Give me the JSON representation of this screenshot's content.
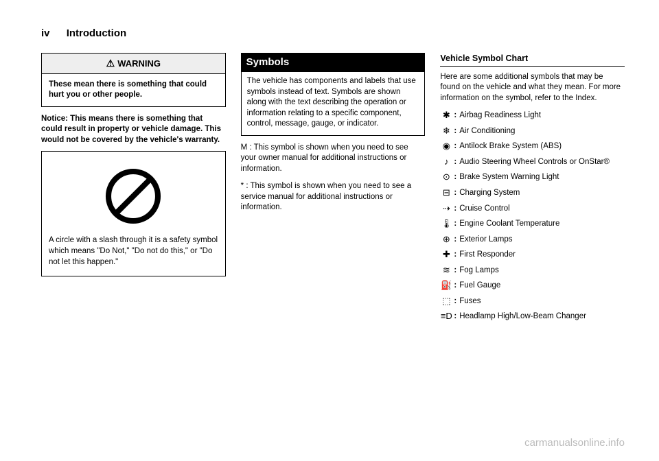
{
  "header": {
    "pagenum": "iv",
    "title": "Introduction"
  },
  "col1": {
    "warning": {
      "header": "WARNING",
      "body": "These mean there is something that could hurt you or other people."
    },
    "notice": "Notice: This means there is something that could result in property or vehicle damage. This would not be covered by the vehicle's warranty.",
    "circle_caption": "A circle with a slash through it is a safety symbol which means \"Do Not,\" \"Do not do this,\" or \"Do not let this happen.\"",
    "circle_stroke": "#000000",
    "circle_bg": "#ffffff"
  },
  "col2": {
    "title": "Symbols",
    "intro": "The vehicle has components and labels that use symbols instead of text. Symbols are shown along with the text describing the operation or information relating to a specific component, control, message, gauge, or indicator.",
    "manual_sym": "M : This symbol is shown when you need to see your owner manual for additional instructions or information.",
    "service_sym": "* : This symbol is shown when you need to see a service manual for additional instructions or information."
  },
  "col3": {
    "subheader": "Vehicle Symbol Chart",
    "intro": "Here are some additional symbols that may be found on the vehicle and what they mean. For more information on the symbol, refer to the Index.",
    "items": [
      {
        "glyph": "✱",
        "label": "Airbag Readiness Light"
      },
      {
        "glyph": "❄",
        "label": "Air Conditioning"
      },
      {
        "glyph": "◉",
        "label": "Antilock Brake System (ABS)"
      },
      {
        "glyph": "♪",
        "label": "Audio Steering Wheel Controls or OnStar®"
      },
      {
        "glyph": "⊙",
        "label": "Brake System Warning Light"
      },
      {
        "glyph": "⊟",
        "label": "Charging System"
      },
      {
        "glyph": "⇢",
        "label": "Cruise Control"
      },
      {
        "glyph": "🌡",
        "label": "Engine Coolant Temperature"
      },
      {
        "glyph": "⊕",
        "label": "Exterior Lamps"
      },
      {
        "glyph": "✚",
        "label": "First Responder"
      },
      {
        "glyph": "≋",
        "label": "Fog Lamps"
      },
      {
        "glyph": "⛽",
        "label": "Fuel Gauge"
      },
      {
        "glyph": "⬚",
        "label": "Fuses"
      },
      {
        "glyph": "≡D",
        "label": "Headlamp High/Low-Beam Changer"
      }
    ]
  },
  "watermark": "carmanualsonline.info",
  "colors": {
    "text": "#000000",
    "bg": "#ffffff",
    "section_bg": "#000000",
    "section_fg": "#ffffff",
    "watermark": "#bbbbbb"
  }
}
